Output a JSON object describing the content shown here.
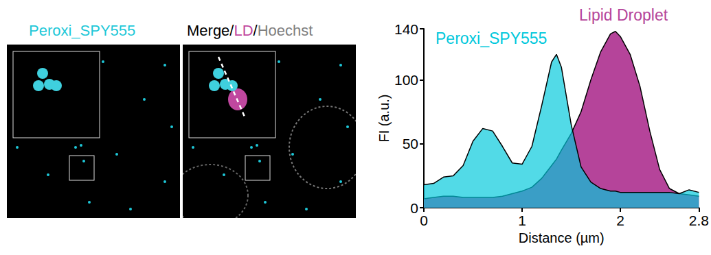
{
  "panels": [
    {
      "title": [
        {
          "text": "Peroxi_SPY555",
          "color": "#1ec8d8"
        }
      ]
    },
    {
      "title": [
        {
          "text": "Merge/",
          "color": "#000000"
        },
        {
          "text": "LD",
          "color": "#c0479f"
        },
        {
          "text": "/",
          "color": "#000000"
        },
        {
          "text": "Hoechst",
          "color": "#808080"
        }
      ]
    }
  ],
  "chart_data": {
    "type": "area",
    "x_label": "Distance (µm)",
    "y_label": "FI (a.u.)",
    "x": [
      0,
      0.1,
      0.2,
      0.3,
      0.4,
      0.5,
      0.6,
      0.7,
      0.8,
      0.9,
      1.0,
      1.1,
      1.2,
      1.3,
      1.35,
      1.4,
      1.5,
      1.6,
      1.7,
      1.8,
      1.9,
      1.95,
      2.0,
      2.1,
      2.2,
      2.3,
      2.4,
      2.5,
      2.6,
      2.7,
      2.8
    ],
    "series": [
      {
        "name": "Peroxi_SPY555",
        "color": "#00c8dc",
        "values": [
          18,
          19,
          24,
          25,
          33,
          52,
          62,
          60,
          48,
          35,
          34,
          48,
          80,
          114,
          120,
          110,
          65,
          32,
          20,
          15,
          13,
          13,
          12,
          12,
          12,
          12,
          12,
          12,
          11,
          14,
          12
        ]
      },
      {
        "name": "Lipid Droplet",
        "color": "#b5449a",
        "values": [
          7,
          8,
          9,
          9,
          8,
          8,
          8,
          8,
          9,
          11,
          13,
          16,
          23,
          33,
          38,
          45,
          58,
          75,
          100,
          122,
          136,
          138,
          134,
          120,
          95,
          60,
          30,
          15,
          11,
          10,
          9
        ]
      }
    ],
    "xlim": [
      0,
      2.8
    ],
    "xticks": [
      0,
      1,
      2
    ],
    "ylim": [
      0,
      140
    ],
    "yticks": [
      0,
      50,
      100
    ],
    "grid": false
  }
}
